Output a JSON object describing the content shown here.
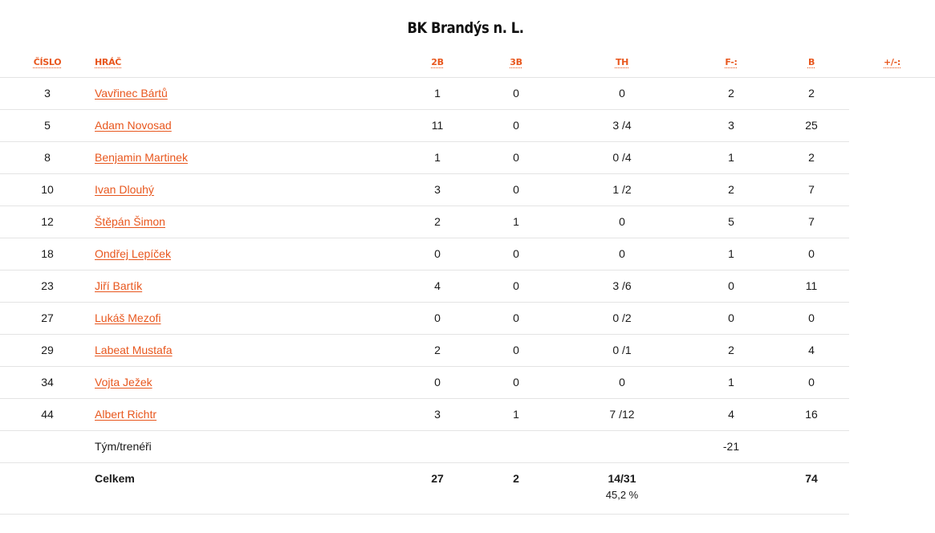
{
  "team": {
    "title": "BK Brandýs n. L."
  },
  "columns": {
    "number": "ČÍSLO",
    "player": "HRÁČ",
    "two_points": "2B",
    "three_points": "3B",
    "free_throws": "TH",
    "fouls": "F-:",
    "points": "B",
    "plus_minus": "+/-:"
  },
  "players": [
    {
      "number": "3",
      "name": "Vavřinec Bártů",
      "two": "1",
      "three": "0",
      "ft": "0",
      "fouls": "2",
      "points": "2"
    },
    {
      "number": "5",
      "name": "Adam Novosad",
      "two": "11",
      "three": "0",
      "ft": "3 /4",
      "fouls": "3",
      "points": "25"
    },
    {
      "number": "8",
      "name": "Benjamin Martinek",
      "two": "1",
      "three": "0",
      "ft": "0 /4",
      "fouls": "1",
      "points": "2"
    },
    {
      "number": "10",
      "name": "Ivan Dlouhý",
      "two": "3",
      "three": "0",
      "ft": "1 /2",
      "fouls": "2",
      "points": "7"
    },
    {
      "number": "12",
      "name": "Štěpán Šimon",
      "two": "2",
      "three": "1",
      "ft": "0",
      "fouls": "5",
      "points": "7"
    },
    {
      "number": "18",
      "name": "Ondřej Lepíček",
      "two": "0",
      "three": "0",
      "ft": "0",
      "fouls": "1",
      "points": "0"
    },
    {
      "number": "23",
      "name": "Jiří Bartík",
      "two": "4",
      "three": "0",
      "ft": "3 /6",
      "fouls": "0",
      "points": "11"
    },
    {
      "number": "27",
      "name": "Lukáš Mezofi",
      "two": "0",
      "three": "0",
      "ft": "0 /2",
      "fouls": "0",
      "points": "0"
    },
    {
      "number": "29",
      "name": "Labeat Mustafa",
      "two": "2",
      "three": "0",
      "ft": "0 /1",
      "fouls": "2",
      "points": "4"
    },
    {
      "number": "34",
      "name": "Vojta Ježek",
      "two": "0",
      "three": "0",
      "ft": "0",
      "fouls": "1",
      "points": "0"
    },
    {
      "number": "44",
      "name": "Albert Richtr",
      "two": "3",
      "three": "1",
      "ft": "7 /12",
      "fouls": "4",
      "points": "16"
    }
  ],
  "team_row": {
    "label": "Tým/trenéři",
    "fouls": "-21"
  },
  "totals": {
    "label": "Celkem",
    "two": "27",
    "three": "2",
    "ft": "14/31",
    "ft_pct": "45,2 %",
    "points": "74"
  }
}
